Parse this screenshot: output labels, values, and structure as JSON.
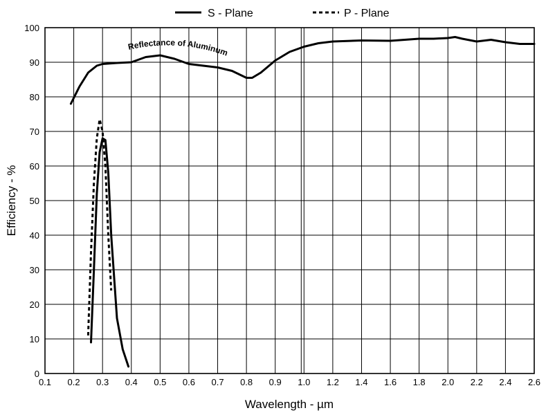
{
  "chart_data": {
    "type": "line",
    "title": "",
    "xlabel": "Wavelength - µm",
    "ylabel": "Efficiency - %",
    "ylim": [
      0,
      100
    ],
    "x_scale": "piecewise-linear (0.1–1.0 step 0.1, 1.0–2.6 step 0.2)",
    "grid": true,
    "legend_position": "top-center",
    "x_tick_labels": [
      "0.1",
      "0.2",
      "0.3",
      "0.4",
      "0.5",
      "0.6",
      "0.7",
      "0.8",
      "0.9",
      "1.0",
      "1.2",
      "1.4",
      "1.6",
      "1.8",
      "2.0",
      "2.2",
      "2.4",
      "2.6"
    ],
    "y_tick_labels": [
      "0",
      "10",
      "20",
      "30",
      "40",
      "50",
      "60",
      "70",
      "80",
      "90",
      "100"
    ],
    "annotations": [
      {
        "text": "Reflectance  of  Aluminum"
      }
    ],
    "legend": [
      {
        "label": "S - Plane",
        "style": "solid"
      },
      {
        "label": "P - Plane",
        "style": "dashed"
      }
    ],
    "series": [
      {
        "name": "S - Plane",
        "style": "solid",
        "points": [
          [
            0.26,
            9
          ],
          [
            0.27,
            30
          ],
          [
            0.28,
            52
          ],
          [
            0.29,
            64
          ],
          [
            0.3,
            68
          ],
          [
            0.31,
            67.5
          ],
          [
            0.32,
            58
          ],
          [
            0.33,
            40
          ],
          [
            0.35,
            16
          ],
          [
            0.37,
            7
          ],
          [
            0.39,
            2
          ]
        ]
      },
      {
        "name": "P - Plane",
        "style": "dashed",
        "points": [
          [
            0.25,
            11
          ],
          [
            0.26,
            35
          ],
          [
            0.27,
            55
          ],
          [
            0.28,
            68
          ],
          [
            0.29,
            73.5
          ],
          [
            0.3,
            70
          ],
          [
            0.31,
            60
          ],
          [
            0.32,
            40
          ],
          [
            0.33,
            24
          ]
        ]
      },
      {
        "name": "Reflectance of Aluminum",
        "style": "solid",
        "points": [
          [
            0.19,
            78
          ],
          [
            0.22,
            83
          ],
          [
            0.25,
            87
          ],
          [
            0.28,
            89
          ],
          [
            0.3,
            89.5
          ],
          [
            0.35,
            89.8
          ],
          [
            0.4,
            90
          ],
          [
            0.45,
            91.5
          ],
          [
            0.5,
            92
          ],
          [
            0.55,
            91
          ],
          [
            0.6,
            89.5
          ],
          [
            0.65,
            89
          ],
          [
            0.7,
            88.5
          ],
          [
            0.75,
            87.5
          ],
          [
            0.8,
            85.5
          ],
          [
            0.82,
            85.5
          ],
          [
            0.85,
            87
          ],
          [
            0.9,
            90.5
          ],
          [
            0.95,
            93
          ],
          [
            1.0,
            94.5
          ],
          [
            1.1,
            95.5
          ],
          [
            1.2,
            96
          ],
          [
            1.4,
            96.3
          ],
          [
            1.6,
            96.2
          ],
          [
            1.7,
            96.5
          ],
          [
            1.8,
            96.8
          ],
          [
            1.9,
            96.8
          ],
          [
            2.0,
            97
          ],
          [
            2.05,
            97.3
          ],
          [
            2.1,
            96.8
          ],
          [
            2.2,
            96
          ],
          [
            2.3,
            96.5
          ],
          [
            2.4,
            95.8
          ],
          [
            2.5,
            95.3
          ],
          [
            2.6,
            95.3
          ]
        ]
      }
    ]
  }
}
